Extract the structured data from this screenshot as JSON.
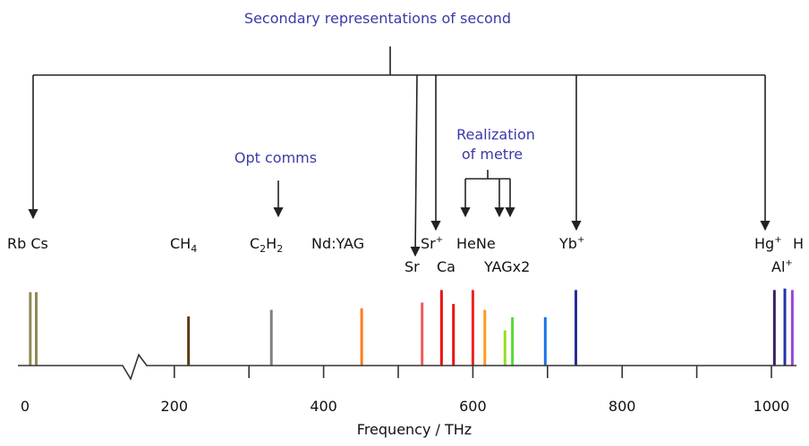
{
  "title": "Secondary representations of second",
  "annotations": {
    "realization_line1": "Realization",
    "realization_line2": "of metre",
    "opt_comms": "Opt comms"
  },
  "species": {
    "rb_cs": "Rb Cs",
    "ch4_main": "CH",
    "ch4_sub": "4",
    "c2h2_c": "C",
    "c2h2_sub1": "2",
    "c2h2_h": "H",
    "c2h2_sub2": "2",
    "ndyag": "Nd:YAG",
    "sr_plus": "Sr",
    "sr_plus_sup": "+",
    "hene": "HeNe",
    "sr": "Sr",
    "ca": "Ca",
    "yagx2": "YAGx2",
    "yb_plus": "Yb",
    "yb_plus_sup": "+",
    "hg_plus": "Hg",
    "hg_plus_sup": "+",
    "h": "H",
    "al_plus": "Al",
    "al_plus_sup": "+"
  },
  "chart_data": {
    "type": "line-spectrum",
    "xlabel": "Frequency / THz",
    "x_ticks": [
      0,
      200,
      400,
      600,
      800,
      1000
    ],
    "axis_break": true,
    "lines": [
      {
        "freq_thz": 7,
        "rel_height": 1.0,
        "color": "#8e8a55"
      },
      {
        "freq_thz": 15,
        "rel_height": 1.0,
        "color": "#8e8a55"
      },
      {
        "freq_thz": 219,
        "rel_height": 0.67,
        "color": "#5e3a14"
      },
      {
        "freq_thz": 330,
        "rel_height": 0.76,
        "color": "#808080"
      },
      {
        "freq_thz": 451,
        "rel_height": 0.78,
        "color": "#ff7a1a"
      },
      {
        "freq_thz": 532,
        "rel_height": 0.86,
        "color": "#f25a5a"
      },
      {
        "freq_thz": 558,
        "rel_height": 1.03,
        "color": "#ee1111"
      },
      {
        "freq_thz": 574,
        "rel_height": 0.84,
        "color": "#ee1111"
      },
      {
        "freq_thz": 600,
        "rel_height": 1.03,
        "color": "#ee2222"
      },
      {
        "freq_thz": 616,
        "rel_height": 0.76,
        "color": "#ff9922"
      },
      {
        "freq_thz": 643,
        "rel_height": 0.48,
        "color": "#99dd22"
      },
      {
        "freq_thz": 653,
        "rel_height": 0.66,
        "color": "#55dd33"
      },
      {
        "freq_thz": 697,
        "rel_height": 0.66,
        "color": "#1a73e8"
      },
      {
        "freq_thz": 738,
        "rel_height": 1.03,
        "color": "#2a2a99"
      },
      {
        "freq_thz": 1004,
        "rel_height": 1.03,
        "color": "#332266"
      },
      {
        "freq_thz": 1018,
        "rel_height": 1.05,
        "color": "#2233aa"
      },
      {
        "freq_thz": 1028,
        "rel_height": 1.03,
        "color": "#9944dd"
      }
    ]
  }
}
